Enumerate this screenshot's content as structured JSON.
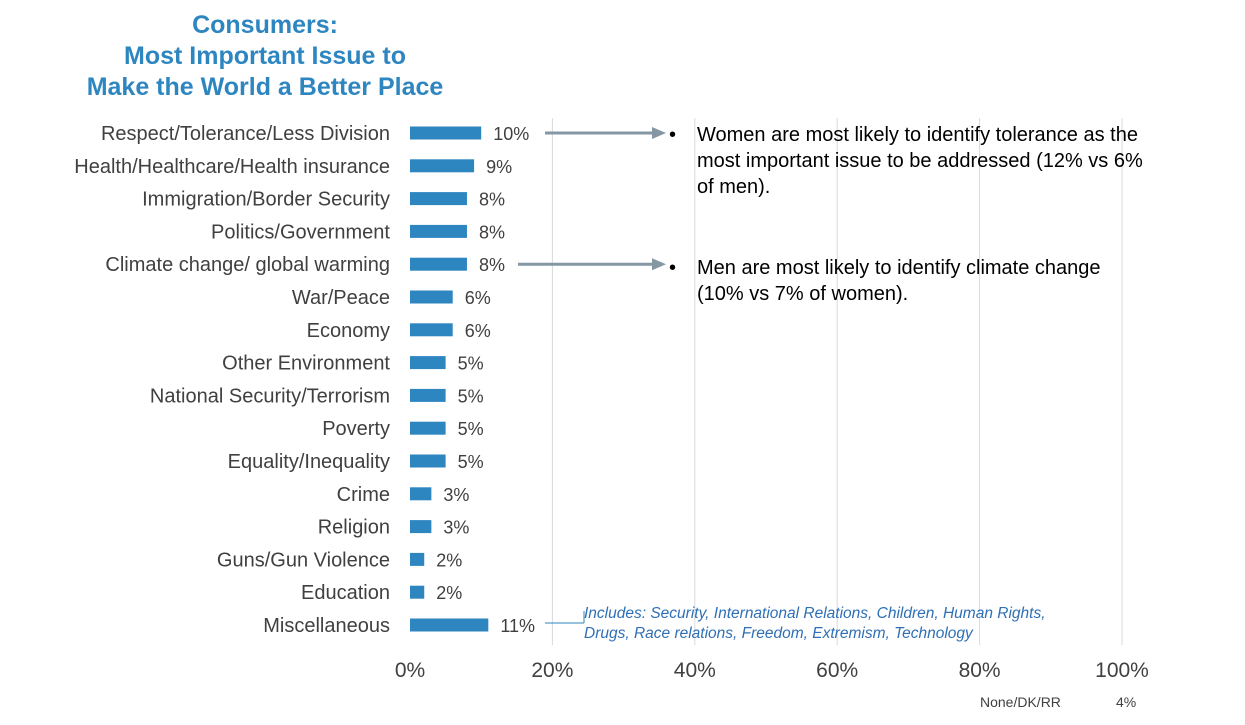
{
  "chart_data": {
    "type": "bar",
    "orientation": "horizontal",
    "title": "Consumers: Most Important Issue to Make the World a Better Place",
    "title_lines": [
      "Consumers:",
      "Most Important Issue to",
      "Make the World a Better Place"
    ],
    "categories": [
      "Respect/Tolerance/Less Division",
      "Health/Healthcare/Health insurance",
      "Immigration/Border Security",
      "Politics/Government",
      "Climate change/ global warming",
      "War/Peace",
      "Economy",
      "Other Environment",
      "National Security/Terrorism",
      "Poverty",
      "Equality/Inequality",
      "Crime",
      "Religion",
      "Guns/Gun Violence",
      "Education",
      "Miscellaneous"
    ],
    "values": [
      10,
      9,
      8,
      8,
      8,
      6,
      6,
      5,
      5,
      5,
      5,
      3,
      3,
      2,
      2,
      11
    ],
    "value_labels": [
      "10%",
      "9%",
      "8%",
      "8%",
      "8%",
      "6%",
      "6%",
      "5%",
      "5%",
      "5%",
      "5%",
      "3%",
      "3%",
      "2%",
      "2%",
      "11%"
    ],
    "xlim": [
      0,
      100
    ],
    "xticks": [
      0,
      20,
      40,
      60,
      80,
      100
    ],
    "xtick_labels": [
      "0%",
      "20%",
      "40%",
      "60%",
      "80%",
      "100%"
    ],
    "grid": "vertical",
    "bar_color": "#2e86c1",
    "annotations": [
      {
        "category": "Respect/Tolerance/Less Division",
        "text": "Women are most likely to identify tolerance as the most important issue to be addressed (12% vs 6% of men)."
      },
      {
        "category": "Climate change/ global warming",
        "text": "Men are most likely to identify climate change (10% vs 7% of women)."
      }
    ],
    "misc_note": "Includes: Security, International Relations, Children, Human Rights, Drugs, Race relations, Freedom, Extremism, Technology",
    "footer": {
      "label": "None/DK/RR",
      "value": "4%"
    }
  },
  "notes": {
    "bullet": "•",
    "women_lines": [
      "Women are most likely to identify tolerance as the",
      "most important issue to be addressed (12% vs 6%",
      "of men)."
    ],
    "men_lines": [
      "Men are most likely to identify climate change",
      "(10% vs 7% of women)."
    ]
  },
  "misc_note_lines": [
    "Includes: Security, International Relations, Children, Human Rights,",
    "Drugs, Race relations, Freedom, Extremism, Technology"
  ]
}
